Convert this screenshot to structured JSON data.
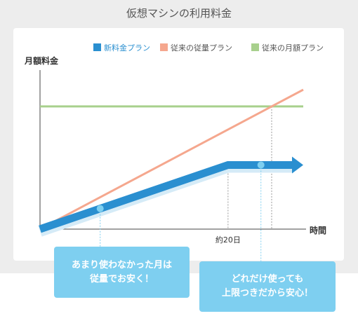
{
  "title": "仮想マシンの利用料金",
  "chart_data": {
    "type": "line",
    "title": "仮想マシンの利用料金",
    "ylabel": "月額料金",
    "xlabel": "時間",
    "x_tick_label": "約20日",
    "x_tick_value": 20,
    "xlim": [
      0,
      28
    ],
    "ylim": [
      0,
      100
    ],
    "legend_position": "top-right",
    "series": [
      {
        "name": "新料金プラン",
        "color": "#2a8fd0",
        "points": [
          [
            0,
            0
          ],
          [
            20,
            46
          ],
          [
            28,
            46
          ]
        ]
      },
      {
        "name": "従来の従量プラン",
        "color": "#f5a78e",
        "points": [
          [
            0,
            0
          ],
          [
            28,
            100
          ]
        ]
      },
      {
        "name": "従来の月額プラン",
        "color": "#a8d08d",
        "points": [
          [
            0,
            88
          ],
          [
            28,
            88
          ]
        ]
      }
    ]
  },
  "callouts": [
    {
      "text": "あまり使わなかった月は\n従量でお安く！",
      "color": "#7ecff0"
    },
    {
      "text": "どれだけ使っても\n上限つきだから安心！",
      "color": "#7ecff0"
    }
  ]
}
